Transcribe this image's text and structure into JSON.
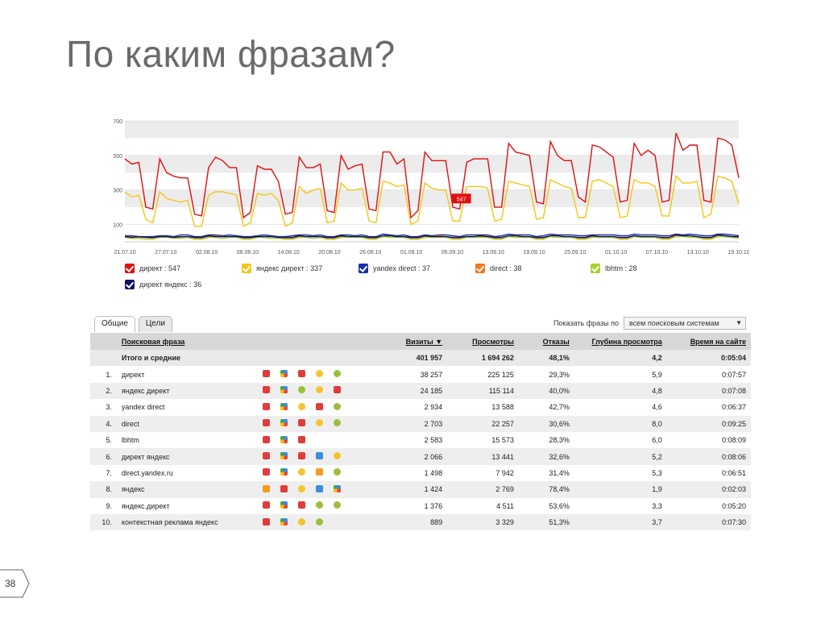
{
  "slide": {
    "title": "По каким фразам?",
    "page_number": "38"
  },
  "chart_data": {
    "type": "line",
    "y_ticks": [
      "700",
      "500",
      "300",
      "100"
    ],
    "ylim": [
      0,
      700
    ],
    "x_tick_labels": [
      "21.07.10",
      "27.07.10",
      "02.08.10",
      "08.08.10",
      "14.08.10",
      "20.08.10",
      "26.08.10",
      "01.09.10",
      "06.09.10",
      "13.09.10",
      "19.09.10",
      "25.09.10",
      "01.10.10",
      "07.10.10",
      "13.10.10",
      "19.10.10"
    ],
    "highlighted_x_label": "08.09.10",
    "callout_label": "547",
    "grid": true,
    "series": [
      {
        "name": "директ : 547",
        "color": "#e01010",
        "values": [
          480,
          450,
          460,
          200,
          190,
          480,
          400,
          380,
          370,
          370,
          160,
          150,
          430,
          490,
          470,
          430,
          430,
          140,
          170,
          440,
          420,
          420,
          350,
          160,
          170,
          490,
          430,
          430,
          450,
          180,
          170,
          500,
          420,
          440,
          450,
          190,
          180,
          520,
          520,
          450,
          480,
          140,
          180,
          520,
          470,
          470,
          470,
          200,
          190,
          460,
          480,
          480,
          480,
          200,
          200,
          570,
          520,
          510,
          500,
          230,
          220,
          580,
          500,
          470,
          470,
          260,
          230,
          560,
          550,
          520,
          490,
          230,
          240,
          570,
          500,
          530,
          500,
          230,
          240,
          630,
          530,
          560,
          560,
          240,
          230,
          600,
          590,
          560,
          370
        ]
      },
      {
        "name": "яндекс директ : 337",
        "color": "#f5c518",
        "values": [
          290,
          260,
          270,
          130,
          110,
          290,
          250,
          240,
          230,
          240,
          90,
          90,
          270,
          290,
          290,
          280,
          270,
          90,
          110,
          280,
          270,
          280,
          240,
          90,
          110,
          320,
          280,
          300,
          310,
          110,
          120,
          340,
          300,
          300,
          310,
          120,
          110,
          350,
          340,
          320,
          330,
          100,
          120,
          340,
          310,
          300,
          300,
          120,
          120,
          320,
          320,
          320,
          310,
          120,
          130,
          350,
          340,
          330,
          320,
          130,
          140,
          360,
          340,
          320,
          310,
          140,
          140,
          350,
          360,
          340,
          320,
          140,
          150,
          360,
          340,
          340,
          320,
          150,
          150,
          380,
          340,
          340,
          350,
          140,
          160,
          380,
          370,
          350,
          220
        ]
      },
      {
        "name": "yandex direct : 37",
        "color": "#1a30a8",
        "values": [
          35,
          35,
          30,
          30,
          30,
          35,
          35,
          30,
          40,
          40,
          30,
          30,
          40,
          40,
          35,
          40,
          35,
          30,
          30,
          35,
          40,
          35,
          30,
          30,
          35,
          40,
          40,
          35,
          40,
          30,
          30,
          40,
          40,
          35,
          40,
          30,
          30,
          45,
          40,
          35,
          40,
          30,
          30,
          40,
          35,
          40,
          40,
          35,
          30,
          40,
          40,
          40,
          40,
          30,
          35,
          45,
          40,
          40,
          40,
          30,
          35,
          45,
          40,
          40,
          40,
          35,
          35,
          40,
          40,
          40,
          40,
          35,
          35,
          45,
          40,
          40,
          40,
          35,
          35,
          45,
          40,
          45,
          40,
          35,
          35,
          45,
          45,
          40,
          35
        ]
      },
      {
        "name": "direct : 38",
        "color": "#f07820",
        "values": [
          30,
          30,
          25,
          25,
          20,
          30,
          30,
          25,
          25,
          30,
          20,
          20,
          30,
          35,
          30,
          30,
          30,
          20,
          20,
          30,
          30,
          30,
          25,
          20,
          20,
          30,
          30,
          30,
          30,
          20,
          20,
          30,
          30,
          30,
          30,
          20,
          20,
          30,
          35,
          30,
          30,
          20,
          20,
          30,
          30,
          35,
          30,
          20,
          20,
          30,
          30,
          30,
          35,
          20,
          20,
          35,
          35,
          30,
          30,
          20,
          20,
          35,
          35,
          30,
          30,
          20,
          20,
          30,
          30,
          30,
          30,
          20,
          20,
          35,
          30,
          30,
          30,
          20,
          20,
          35,
          35,
          35,
          30,
          20,
          20,
          35,
          35,
          30,
          25
        ]
      },
      {
        "name": "lbhtm : 28",
        "color": "#a6d22a",
        "values": [
          25,
          20,
          20,
          15,
          15,
          25,
          25,
          20,
          20,
          25,
          15,
          15,
          25,
          25,
          20,
          25,
          25,
          15,
          15,
          25,
          25,
          20,
          20,
          15,
          15,
          25,
          25,
          20,
          25,
          15,
          15,
          25,
          25,
          25,
          25,
          15,
          15,
          30,
          25,
          25,
          25,
          15,
          15,
          25,
          25,
          25,
          25,
          15,
          15,
          25,
          25,
          25,
          25,
          15,
          15,
          30,
          25,
          25,
          25,
          15,
          15,
          30,
          25,
          25,
          25,
          15,
          15,
          25,
          25,
          25,
          25,
          15,
          15,
          30,
          25,
          25,
          25,
          15,
          15,
          30,
          30,
          25,
          25,
          15,
          15,
          30,
          30,
          25,
          20
        ]
      },
      {
        "name": "директ яндекс : 36",
        "color": "#101060",
        "values": [
          30,
          25,
          30,
          25,
          25,
          30,
          30,
          25,
          30,
          30,
          25,
          25,
          35,
          30,
          30,
          30,
          30,
          25,
          25,
          30,
          30,
          30,
          25,
          25,
          25,
          35,
          30,
          30,
          30,
          25,
          25,
          35,
          30,
          30,
          30,
          25,
          25,
          35,
          35,
          30,
          30,
          25,
          25,
          35,
          30,
          30,
          30,
          25,
          25,
          30,
          30,
          35,
          30,
          25,
          25,
          35,
          35,
          30,
          30,
          25,
          25,
          35,
          35,
          30,
          30,
          25,
          25,
          35,
          30,
          30,
          30,
          25,
          25,
          35,
          30,
          30,
          30,
          25,
          25,
          40,
          35,
          35,
          30,
          25,
          25,
          40,
          35,
          30,
          30
        ]
      }
    ]
  },
  "tabs": [
    {
      "label": "Общие"
    },
    {
      "label": "Цели"
    }
  ],
  "phrase_filter": {
    "label": "Показать фразы по",
    "value": "всем поисковым системам"
  },
  "table": {
    "headers": [
      "Поисковая фраза",
      "Визиты ▼",
      "Просмотры",
      "Отказы",
      "Глубина просмотра",
      "Время на сайте"
    ],
    "total": {
      "label": "Итого и средние",
      "visits": "401 957",
      "views": "1 694 262",
      "bounces": "48,1%",
      "depth": "4,2",
      "time": "0:05:04"
    },
    "rows": [
      {
        "n": "1.",
        "phrase": "директ",
        "visits": "38 257",
        "views": "225 125",
        "bounces": "29,3%",
        "depth": "5,9",
        "time": "0:07:57",
        "icons": [
          "ya",
          "g",
          "ya",
          "s",
          "r"
        ]
      },
      {
        "n": "2.",
        "phrase": "яндекс директ",
        "visits": "24 185",
        "views": "115 114",
        "bounces": "40,0%",
        "depth": "4,8",
        "time": "0:07:08",
        "icons": [
          "ya",
          "g",
          "r",
          "s",
          "ya"
        ]
      },
      {
        "n": "3.",
        "phrase": "yandex direct",
        "visits": "2 934",
        "views": "13 588",
        "bounces": "42,7%",
        "depth": "4,6",
        "time": "0:06:37",
        "icons": [
          "ya",
          "g",
          "s",
          "ya",
          "r"
        ]
      },
      {
        "n": "4.",
        "phrase": "direct",
        "visits": "2 703",
        "views": "22 257",
        "bounces": "30,6%",
        "depth": "8,0",
        "time": "0:09:25",
        "icons": [
          "ya",
          "g",
          "ya",
          "s",
          "r"
        ]
      },
      {
        "n": "5.",
        "phrase": "lbhtm",
        "visits": "2 583",
        "views": "15 573",
        "bounces": "28,3%",
        "depth": "6,0",
        "time": "0:08:09",
        "icons": [
          "ya",
          "g",
          "ya"
        ]
      },
      {
        "n": "6.",
        "phrase": "директ яндекс",
        "visits": "2 066",
        "views": "13 441",
        "bounces": "32,6%",
        "depth": "5,2",
        "time": "0:08:06",
        "icons": [
          "ya",
          "g",
          "ya",
          "w",
          "s"
        ]
      },
      {
        "n": "7.",
        "phrase": "direct.yandex.ru",
        "visits": "1 498",
        "views": "7 942",
        "bounces": "31,4%",
        "depth": "5,3",
        "time": "0:06:51",
        "icons": [
          "ya",
          "g",
          "s",
          "m",
          "r"
        ]
      },
      {
        "n": "8.",
        "phrase": "яндекс",
        "visits": "1 424",
        "views": "2 769",
        "bounces": "78,4%",
        "depth": "1,9",
        "time": "0:02:03",
        "icons": [
          "m",
          "ya",
          "s",
          "w",
          "g"
        ]
      },
      {
        "n": "9.",
        "phrase": "яндекс.директ",
        "visits": "1 376",
        "views": "4 511",
        "bounces": "53,6%",
        "depth": "3,3",
        "time": "0:05:20",
        "icons": [
          "ya",
          "g",
          "ya",
          "r",
          "r"
        ]
      },
      {
        "n": "10.",
        "phrase": "контекстная реклама яндекс",
        "visits": "889",
        "views": "3 329",
        "bounces": "51,3%",
        "depth": "3,7",
        "time": "0:07:30",
        "icons": [
          "ya",
          "g",
          "s",
          "r"
        ]
      }
    ]
  }
}
